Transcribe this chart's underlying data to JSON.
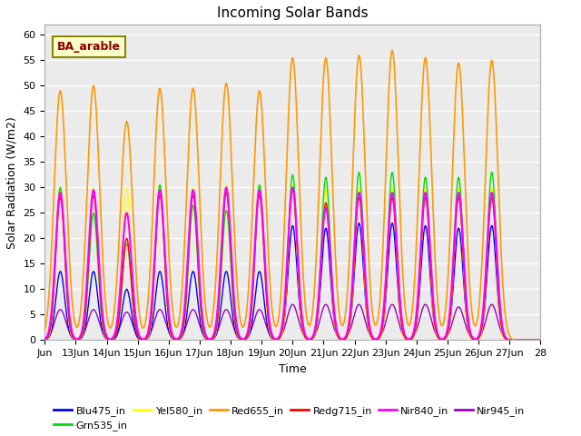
{
  "title": "Incoming Solar Bands",
  "xlabel": "Time",
  "ylabel": "Solar Radiation (W/m2)",
  "annotation": "BA_arable",
  "ylim": [
    0,
    62
  ],
  "yticks": [
    0,
    5,
    10,
    15,
    20,
    25,
    30,
    35,
    40,
    45,
    50,
    55,
    60
  ],
  "xtick_labels": [
    "Jun",
    "13Jun",
    "14Jun",
    "15Jun",
    "16Jun",
    "17Jun",
    "18Jun",
    "19Jun",
    "20Jun",
    "21Jun",
    "22Jun",
    "23Jun",
    "24Jun",
    "25Jun",
    "26Jun",
    "27Jun",
    "28"
  ],
  "series": {
    "Blu475_in": {
      "color": "#0000ff",
      "lw": 1.0
    },
    "Grn535_in": {
      "color": "#00dd00",
      "lw": 1.0
    },
    "Yel580_in": {
      "color": "#ffff00",
      "lw": 1.0
    },
    "Red655_in": {
      "color": "#ff9900",
      "lw": 1.2
    },
    "Redg715_in": {
      "color": "#ff0000",
      "lw": 1.0
    },
    "Nir840_in": {
      "color": "#ff00ff",
      "lw": 1.5
    },
    "Nir945_in": {
      "color": "#9900cc",
      "lw": 1.0
    }
  },
  "peaks_orange": [
    49.0,
    50.0,
    43.0,
    49.5,
    49.5,
    50.5,
    49.0,
    55.5,
    55.5,
    56.0,
    57.0,
    55.5,
    54.5,
    55.0
  ],
  "peaks_green": [
    30.0,
    25.0,
    19.0,
    30.5,
    26.5,
    25.5,
    30.5,
    32.5,
    32.0,
    33.0,
    33.0,
    32.0,
    32.0,
    33.0
  ],
  "peaks_yellow": [
    30.0,
    30.0,
    30.0,
    30.5,
    30.0,
    30.5,
    30.5,
    30.5,
    30.0,
    30.0,
    30.0,
    30.0,
    30.0,
    30.0
  ],
  "peaks_blue": [
    13.5,
    13.5,
    10.0,
    13.5,
    13.5,
    13.5,
    13.5,
    22.5,
    22.0,
    23.0,
    23.0,
    22.5,
    22.0,
    22.5
  ],
  "peaks_red": [
    28.0,
    28.5,
    20.0,
    28.5,
    28.5,
    29.0,
    28.5,
    29.5,
    27.0,
    28.0,
    28.0,
    28.0,
    28.0,
    28.0
  ],
  "peaks_magenta": [
    29.0,
    29.5,
    25.0,
    29.5,
    29.5,
    30.0,
    29.5,
    30.0,
    26.0,
    29.0,
    29.0,
    29.0,
    29.0,
    29.0
  ],
  "peaks_purple": [
    6.0,
    6.0,
    5.5,
    6.0,
    6.0,
    6.0,
    6.0,
    7.0,
    7.0,
    7.0,
    7.0,
    7.0,
    6.5,
    7.0
  ],
  "plot_bg": "#ebebeb",
  "grid_color": "#ffffff",
  "n_peaks": 14,
  "sigma": 0.09
}
